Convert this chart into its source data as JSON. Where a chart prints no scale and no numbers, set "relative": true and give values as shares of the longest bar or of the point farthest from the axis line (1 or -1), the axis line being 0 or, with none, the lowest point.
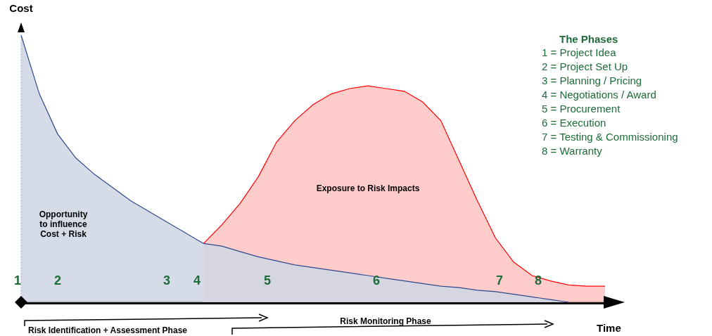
{
  "chart_data": {
    "type": "area",
    "relative": true,
    "xlabel": "Time",
    "ylabel": "Cost",
    "grid": false,
    "categories": [
      null,
      null,
      null,
      null,
      null,
      null,
      null,
      null,
      null,
      null,
      null,
      null,
      null,
      null,
      null,
      null,
      null,
      null,
      null,
      null,
      null,
      null,
      null,
      null,
      null,
      null,
      null,
      null,
      null,
      null,
      null,
      null,
      null
    ],
    "series": [
      {
        "name": "Opportunity\nto influence\nCost + Risk",
        "color": "#2e4a8c",
        "values": [
          1.0,
          0.78,
          0.63,
          0.54,
          0.48,
          0.43,
          0.38,
          0.34,
          0.3,
          0.26,
          0.22,
          0.21,
          0.19,
          0.17,
          0.155,
          0.14,
          0.13,
          0.12,
          0.11,
          0.1,
          0.09,
          0.08,
          0.07,
          0.06,
          0.055,
          0.045,
          0.04,
          0.03,
          0.02,
          0.01,
          0,
          null,
          null
        ]
      },
      {
        "name": "Exposure to Risk Impacts",
        "color": "#ff0000",
        "values": [
          null,
          null,
          null,
          null,
          null,
          null,
          null,
          null,
          null,
          null,
          0.22,
          0.29,
          0.37,
          0.47,
          0.6,
          0.68,
          0.74,
          0.78,
          0.8,
          0.81,
          0.8,
          0.79,
          0.75,
          0.68,
          0.53,
          0.38,
          0.24,
          0.15,
          0.1,
          0.08,
          0.065,
          0.06,
          0.06
        ]
      }
    ],
    "annotations": [
      "1",
      "2",
      "3",
      "4",
      "5",
      "6",
      "7",
      "8",
      "The Phases",
      "1    = Project Idea",
      "2    = Project Set Up",
      "3    = Planning / Pricing",
      "4    = Negotiations / Award",
      "5    = Procurement",
      "6    = Execution",
      "7    = Testing & Commissioning",
      "8    = Warranty",
      "Risk Identification + Assessment Phase",
      "Risk Monitoring Phase"
    ]
  }
}
